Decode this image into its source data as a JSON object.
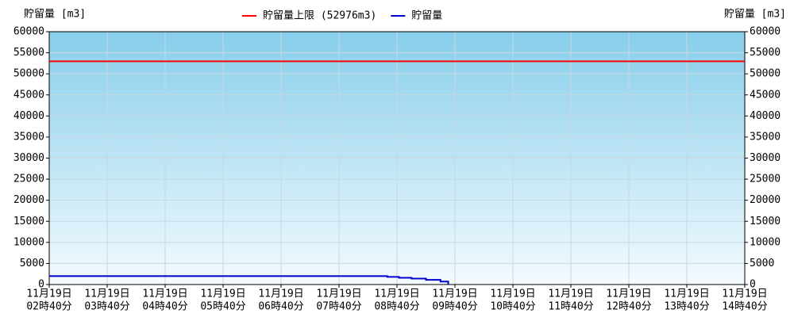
{
  "chart_data": {
    "type": "line",
    "ylabel": "貯留量 [m3]",
    "y2label": "貯留量 [m3]",
    "xlim": [
      "11-19 02:40",
      "11-19 14:40"
    ],
    "xticks": [
      {
        "value": "11-19 02:40",
        "label": [
          "11月19日",
          "02時40分"
        ]
      },
      {
        "value": "11-19 03:40",
        "label": [
          "11月19日",
          "03時40分"
        ]
      },
      {
        "value": "11-19 04:40",
        "label": [
          "11月19日",
          "04時40分"
        ]
      },
      {
        "value": "11-19 05:40",
        "label": [
          "11月19日",
          "05時40分"
        ]
      },
      {
        "value": "11-19 06:40",
        "label": [
          "11月19日",
          "06時40分"
        ]
      },
      {
        "value": "11-19 07:40",
        "label": [
          "11月19日",
          "07時40分"
        ]
      },
      {
        "value": "11-19 08:40",
        "label": [
          "11月19日",
          "08時40分"
        ]
      },
      {
        "value": "11-19 09:40",
        "label": [
          "11月19日",
          "09時40分"
        ]
      },
      {
        "value": "11-19 10:40",
        "label": [
          "11月19日",
          "10時40分"
        ]
      },
      {
        "value": "11-19 11:40",
        "label": [
          "11月19日",
          "11時40分"
        ]
      },
      {
        "value": "11-19 12:40",
        "label": [
          "11月19日",
          "12時40分"
        ]
      },
      {
        "value": "11-19 13:40",
        "label": [
          "11月19日",
          "13時40分"
        ]
      },
      {
        "value": "11-19 14:40",
        "label": [
          "11月19日",
          "14時40分"
        ]
      }
    ],
    "ylim": [
      0,
      60000
    ],
    "yticks": [
      0,
      5000,
      10000,
      15000,
      20000,
      25000,
      30000,
      35000,
      40000,
      45000,
      50000,
      55000,
      60000
    ],
    "y2lim": [
      0,
      60000
    ],
    "y2ticks": [
      0,
      5000,
      10000,
      15000,
      20000,
      25000,
      30000,
      35000,
      40000,
      45000,
      50000,
      55000,
      60000
    ],
    "grid": true,
    "series": [
      {
        "name": "貯留量上限 (52976m3)",
        "color": "#ff0000",
        "x": [
          "11-19 02:40",
          "11-19 14:40"
        ],
        "values": [
          52976,
          52976
        ]
      },
      {
        "name": "貯留量",
        "color": "#0000cc",
        "x": [
          "11-19 02:40",
          "11-19 08:30",
          "11-19 08:30",
          "11-19 08:42",
          "11-19 08:42",
          "11-19 08:55",
          "11-19 08:55",
          "11-19 09:10",
          "11-19 09:10",
          "11-19 09:25",
          "11-19 09:25",
          "11-19 09:33",
          "11-19 09:33"
        ],
        "values": [
          2000,
          2000,
          1800,
          1800,
          1600,
          1600,
          1400,
          1400,
          1100,
          1100,
          700,
          700,
          0
        ]
      }
    ]
  }
}
